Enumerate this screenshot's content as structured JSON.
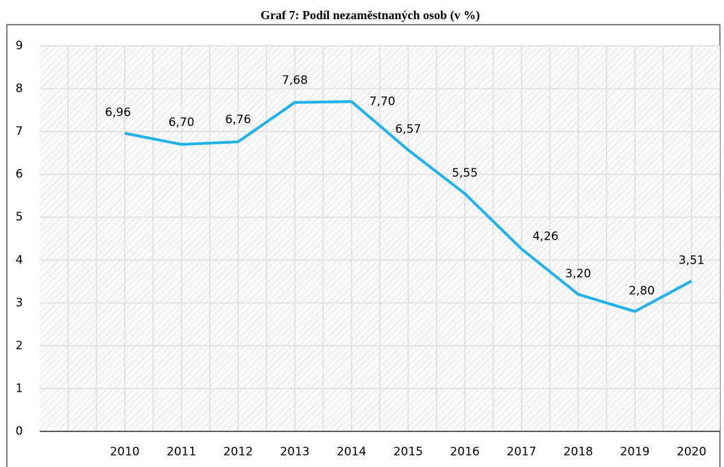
{
  "chart_data": {
    "type": "line",
    "title": "Graf 7: Podíl nezaměstnaných osob (v %)",
    "categories": [
      null,
      "2010",
      "2011",
      "2012",
      "2013",
      "2014",
      "2015",
      "2016",
      "2017",
      "2018",
      "2019",
      "2020"
    ],
    "series": [
      {
        "name": null,
        "color": "#1fb1ea",
        "values": [
          null,
          6.96,
          6.7,
          6.76,
          7.68,
          7.7,
          6.57,
          5.55,
          4.26,
          3.2,
          2.8,
          3.51
        ],
        "value_labels": [
          null,
          "6,96",
          "6,70",
          "6,76",
          "7,68",
          "7,70",
          "6,57",
          "5,55",
          "4,26",
          "3,20",
          "2,80",
          "3,51"
        ]
      }
    ],
    "ylim": [
      0,
      9
    ],
    "yticks": [
      0,
      1,
      2,
      3,
      4,
      5,
      6,
      7,
      8,
      9
    ],
    "grid": true
  }
}
